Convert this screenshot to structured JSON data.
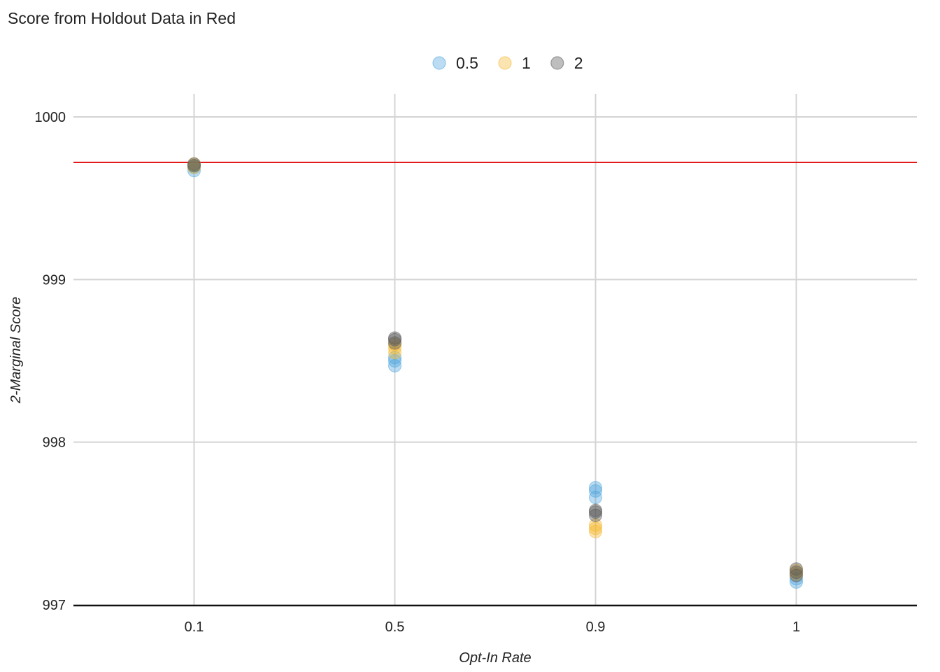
{
  "chart_data": {
    "type": "scatter",
    "title": "Score from Holdout Data in Red",
    "xlabel": "Opt-In Rate",
    "ylabel": "2-Marginal Score",
    "categories": [
      "0.1",
      "0.5",
      "0.9",
      "1"
    ],
    "ylim": [
      997,
      1000.2
    ],
    "yticks": [
      "997",
      "998",
      "999",
      "1000"
    ],
    "grid": true,
    "legend_position": "top-center",
    "reference_line": {
      "y": 999.72,
      "color": "#e31a1c"
    },
    "series": [
      {
        "name": "0.5",
        "color": "#4ba3dc",
        "points": [
          {
            "x": "0.1",
            "y": 999.67
          },
          {
            "x": "0.1",
            "y": 999.69
          },
          {
            "x": "0.1",
            "y": 999.7
          },
          {
            "x": "0.5",
            "y": 998.47
          },
          {
            "x": "0.5",
            "y": 998.5
          },
          {
            "x": "0.5",
            "y": 998.52
          },
          {
            "x": "0.9",
            "y": 997.66
          },
          {
            "x": "0.9",
            "y": 997.7
          },
          {
            "x": "0.9",
            "y": 997.72
          },
          {
            "x": "1",
            "y": 997.14
          },
          {
            "x": "1",
            "y": 997.16
          }
        ]
      },
      {
        "name": "1",
        "color": "#f5b82e",
        "points": [
          {
            "x": "0.1",
            "y": 999.69
          },
          {
            "x": "0.1",
            "y": 999.71
          },
          {
            "x": "0.5",
            "y": 998.55
          },
          {
            "x": "0.5",
            "y": 998.58
          },
          {
            "x": "0.5",
            "y": 998.6
          },
          {
            "x": "0.9",
            "y": 997.45
          },
          {
            "x": "0.9",
            "y": 997.47
          },
          {
            "x": "0.9",
            "y": 997.49
          },
          {
            "x": "1",
            "y": 997.19
          },
          {
            "x": "1",
            "y": 997.21
          }
        ]
      },
      {
        "name": "2",
        "color": "#555555",
        "points": [
          {
            "x": "0.1",
            "y": 999.7
          },
          {
            "x": "0.1",
            "y": 999.71
          },
          {
            "x": "0.5",
            "y": 998.61
          },
          {
            "x": "0.5",
            "y": 998.63
          },
          {
            "x": "0.5",
            "y": 998.64
          },
          {
            "x": "0.9",
            "y": 997.55
          },
          {
            "x": "0.9",
            "y": 997.57
          },
          {
            "x": "0.9",
            "y": 997.58
          },
          {
            "x": "1",
            "y": 997.18
          },
          {
            "x": "1",
            "y": 997.2
          },
          {
            "x": "1",
            "y": 997.22
          }
        ]
      }
    ]
  }
}
